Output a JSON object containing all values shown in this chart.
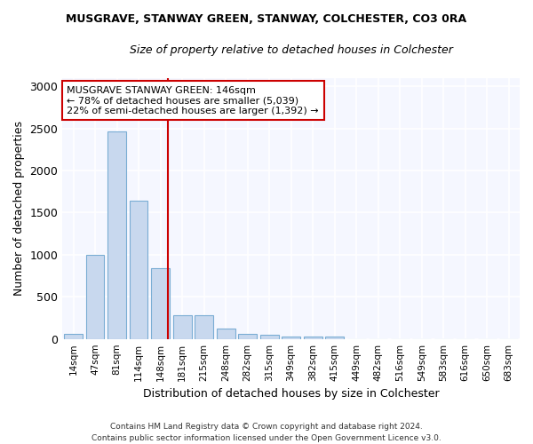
{
  "title": "MUSGRAVE, STANWAY GREEN, STANWAY, COLCHESTER, CO3 0RA",
  "subtitle": "Size of property relative to detached houses in Colchester",
  "xlabel": "Distribution of detached houses by size in Colchester",
  "ylabel": "Number of detached properties",
  "categories": [
    "14sqm",
    "47sqm",
    "81sqm",
    "114sqm",
    "148sqm",
    "181sqm",
    "215sqm",
    "248sqm",
    "282sqm",
    "315sqm",
    "349sqm",
    "382sqm",
    "415sqm",
    "449sqm",
    "482sqm",
    "516sqm",
    "549sqm",
    "583sqm",
    "616sqm",
    "650sqm",
    "683sqm"
  ],
  "values": [
    55,
    1000,
    2460,
    1640,
    840,
    285,
    285,
    120,
    55,
    50,
    30,
    25,
    30,
    0,
    0,
    0,
    0,
    0,
    0,
    0,
    0
  ],
  "bar_color": "#c8d8ee",
  "bar_edge_color": "#7aadd4",
  "vline_x_index": 4,
  "vline_color": "#cc0000",
  "annotation_text": "MUSGRAVE STANWAY GREEN: 146sqm\n← 78% of detached houses are smaller (5,039)\n22% of semi-detached houses are larger (1,392) →",
  "annotation_box_facecolor": "#ffffff",
  "annotation_box_edge": "#cc0000",
  "ylim": [
    0,
    3100
  ],
  "yticks": [
    0,
    500,
    1000,
    1500,
    2000,
    2500,
    3000
  ],
  "footer": "Contains HM Land Registry data © Crown copyright and database right 2024.\nContains public sector information licensed under the Open Government Licence v3.0.",
  "bg_color": "#ffffff",
  "plot_bg_color": "#f5f7ff",
  "grid_color": "#ffffff"
}
